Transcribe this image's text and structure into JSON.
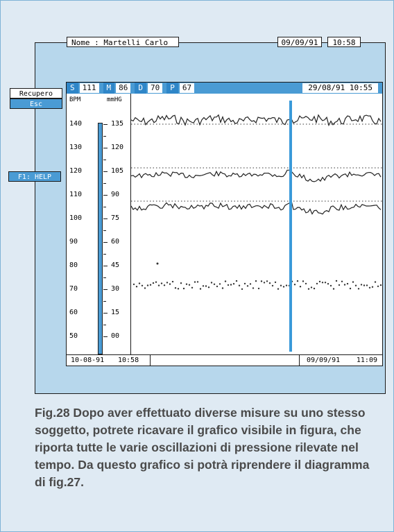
{
  "header": {
    "name_label": "Nome : Martelli Carlo",
    "date": "09/09/91",
    "time": "10:58"
  },
  "side_buttons": {
    "recupero": "Recupero",
    "esc": "Esc",
    "help": "F1: HELP"
  },
  "status": {
    "s_label": "S",
    "s_value": "111",
    "m_label": "M",
    "m_value": "86",
    "d_label": "D",
    "d_value": "70",
    "p_label": "P",
    "p_value": "67",
    "datetime": "29/08/91 10:55"
  },
  "scale": {
    "bpm_unit": "BPM",
    "mmhg_unit": "mmHG",
    "bpm_ticks": [
      "140",
      "130",
      "120",
      "110",
      "100",
      "90",
      "80",
      "70",
      "60",
      "50"
    ],
    "mmhg_ticks": [
      "135",
      "120",
      "105",
      "90",
      "75",
      "60",
      "45",
      "30",
      "15",
      "00"
    ]
  },
  "footer": {
    "start_date": "10-08-91",
    "start_time": "10:58",
    "end_date": "09/09/91",
    "end_time": "11:09"
  },
  "caption": "Fig.28 Dopo aver effettuato diverse misure su uno stesso soggetto, potrete ricavare il grafico visibile in figura, che riporta tutte le varie oscillazioni di pressione rilevate nel tempo. Da questo grafico si potrà riprendere il diagramma di fig.27.",
  "colors": {
    "accent": "#4a9bd4",
    "frame": "#b7d7ec"
  }
}
